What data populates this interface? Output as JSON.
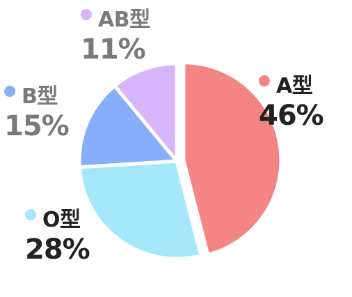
{
  "chart_data": {
    "type": "pie",
    "slices": [
      {
        "label": "A型",
        "value": 46,
        "value_label": "46%",
        "color": "#f58484"
      },
      {
        "label": "O型",
        "value": 28,
        "value_label": "28%",
        "color": "#a6e8fb"
      },
      {
        "label": "B型",
        "value": 15,
        "value_label": "15%",
        "color": "#87aefb"
      },
      {
        "label": "AB型",
        "value": 11,
        "value_label": "11%",
        "color": "#d8b5fb"
      }
    ],
    "start": "12 o'clock",
    "direction": "clockwise",
    "exploded_slice": "A型",
    "legend": "labels beside slices"
  }
}
